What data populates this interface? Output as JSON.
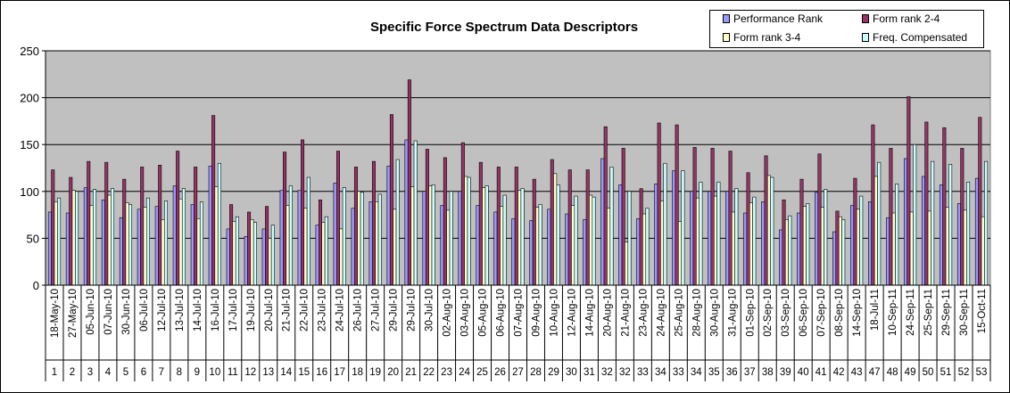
{
  "chart_data": {
    "type": "bar",
    "title": "Specific Force Spectrum Data Descriptors",
    "xlabel": "",
    "ylabel": "",
    "ylim": [
      0,
      250
    ],
    "yticks": [
      0,
      50,
      100,
      150,
      200,
      250
    ],
    "grid": true,
    "legend_position": "top-right",
    "plot_bg": "#c0c0c0",
    "categories": [
      "18-May-10",
      "27-May-10",
      "05-Jun-10",
      "07-Jun-10",
      "30-Jun-10",
      "06-Jul-10",
      "12-Jul-10",
      "13-Jul-10",
      "14-Jul-10",
      "16-Jul-10",
      "17-Jul-10",
      "19-Jul-10",
      "20-Jul-10",
      "21-Jul-10",
      "22-Jul-10",
      "23-Jul-10",
      "24-Jul-10",
      "26-Jul-10",
      "27-Jul-10",
      "29-Jul-10",
      "29-Jul-10",
      "30-Jul-10",
      "02-Aug-10",
      "03-Aug-10",
      "05-Aug-10",
      "06-Aug-10",
      "07-Aug-10",
      "09-Aug-10",
      "10-Aug-10",
      "12-Aug-10",
      "14-Aug-10",
      "20-Aug-10",
      "21-Aug-10",
      "23-Aug-10",
      "24-Aug-10",
      "25-Aug-10",
      "28-Aug-10",
      "30-Aug-10",
      "31-Aug-10",
      "01-Sep-10",
      "02-Sep-10",
      "03-Sep-10",
      "06-Sep-10",
      "07-Sep-10",
      "08-Sep-10",
      "14-Sep-10",
      "18-Jul-11",
      "10-Sep-11",
      "24-Sep-11",
      "25-Sep-11",
      "29-Sep-11",
      "30-Sep-11",
      "15-Oct-11"
    ],
    "ids": [
      "1",
      "2",
      "3",
      "4",
      "5",
      "6",
      "7",
      "8",
      "9",
      "10",
      "11",
      "12",
      "13",
      "14",
      "15",
      "16",
      "17",
      "18",
      "19",
      "20",
      "21",
      "22",
      "23",
      "24",
      "25",
      "26",
      "27",
      "28",
      "29",
      "30",
      "31",
      "32",
      "32",
      "33",
      "34",
      "33",
      "34",
      "35",
      "36",
      "37",
      "38",
      "39",
      "40",
      "41",
      "42",
      "43",
      "47",
      "48",
      "49",
      "50",
      "51",
      "52",
      "53"
    ],
    "series": [
      {
        "name": "Performance Rank",
        "color": "#9999ff",
        "values": [
          78,
          77,
          104,
          91,
          72,
          81,
          84,
          106,
          86,
          127,
          60,
          52,
          60,
          101,
          101,
          64,
          109,
          82,
          89,
          127,
          155,
          100,
          85,
          100,
          85,
          78,
          71,
          69,
          81,
          76,
          70,
          135,
          107,
          71,
          108,
          122,
          100,
          100,
          100,
          77,
          89,
          59,
          77,
          99,
          57,
          85,
          89,
          72,
          135,
          116,
          107,
          87,
          114
        ]
      },
      {
        "name": "Form rank 2-4",
        "color": "#993366",
        "values": [
          123,
          115,
          132,
          131,
          113,
          126,
          128,
          143,
          126,
          181,
          86,
          78,
          84,
          142,
          155,
          91,
          143,
          126,
          132,
          182,
          219,
          145,
          136,
          152,
          131,
          126,
          126,
          113,
          134,
          123,
          123,
          169,
          146,
          103,
          173,
          171,
          147,
          146,
          143,
          120,
          138,
          91,
          113,
          140,
          79,
          114,
          171,
          146,
          201,
          174,
          168,
          146,
          179
        ]
      },
      {
        "name": "Form rank 3-4",
        "color": "#ffffcc",
        "values": [
          89,
          101,
          85,
          96,
          88,
          83,
          70,
          92,
          71,
          105,
          68,
          70,
          50,
          85,
          82,
          67,
          60,
          100,
          89,
          81,
          105,
          106,
          80,
          116,
          104,
          84,
          101,
          83,
          119,
          85,
          96,
          82,
          46,
          76,
          90,
          68,
          93,
          95,
          78,
          88,
          117,
          70,
          84,
          83,
          73,
          81,
          116,
          77,
          78,
          79,
          83,
          80,
          73
        ]
      },
      {
        "name": "Freq. Compensated",
        "color": "#ccffff",
        "values": [
          93,
          100,
          102,
          103,
          86,
          93,
          90,
          103,
          89,
          130,
          73,
          67,
          64,
          106,
          115,
          73,
          104,
          99,
          97,
          134,
          154,
          107,
          100,
          115,
          106,
          96,
          103,
          86,
          107,
          95,
          94,
          126,
          100,
          82,
          130,
          122,
          110,
          110,
          103,
          94,
          115,
          74,
          87,
          102,
          70,
          95,
          131,
          108,
          150,
          132,
          129,
          110,
          132
        ]
      }
    ]
  }
}
